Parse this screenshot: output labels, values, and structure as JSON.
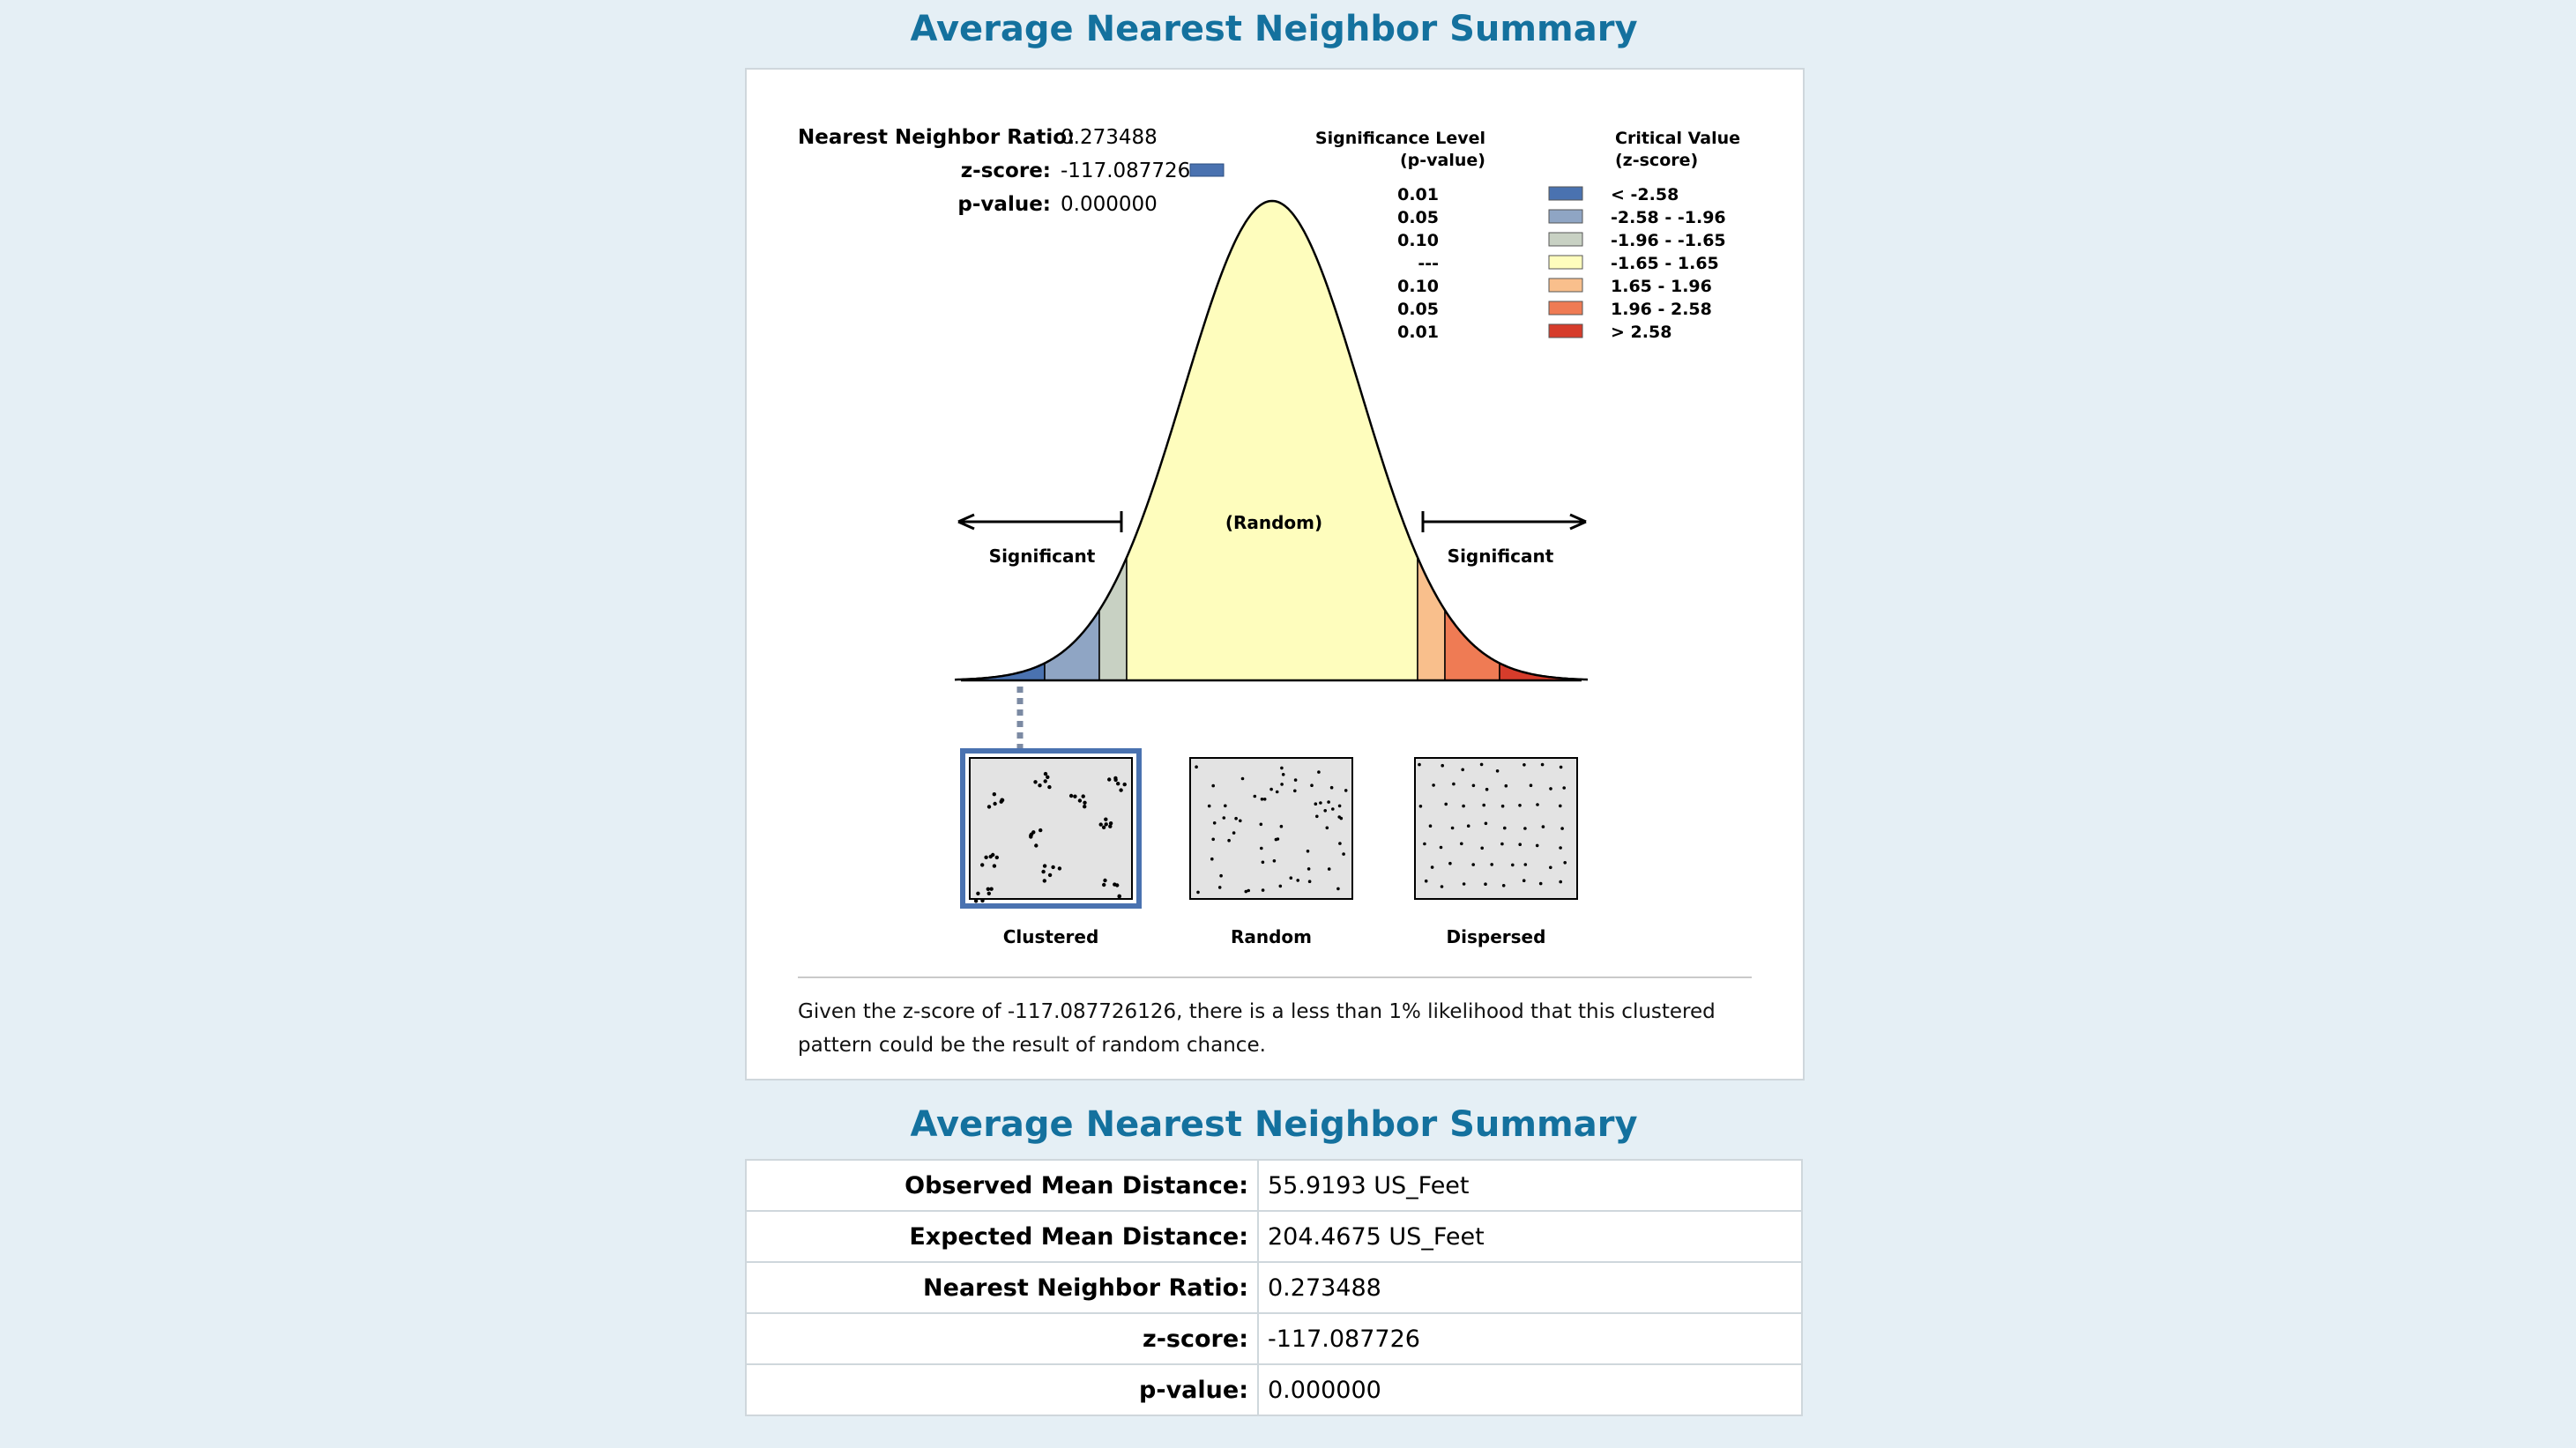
{
  "titles": {
    "chart_title": "Average Nearest Neighbor Summary",
    "table_title": "Average Nearest Neighbor Summary"
  },
  "stats": {
    "ratio_label": "Nearest Neighbor Ratio:",
    "ratio_value": "0.273488",
    "z_label": "z-score:",
    "z_value": "-117.087726",
    "p_label": "p-value:",
    "p_value": "0.000000"
  },
  "legend": {
    "sig_header_1": "Significance Level",
    "sig_header_2": "(p-value)",
    "crit_header_1": "Critical Value",
    "crit_header_2": "(z-score)",
    "rows": [
      {
        "p": "0.01",
        "z": "< -2.58",
        "color": "#4a72b0"
      },
      {
        "p": "0.05",
        "z": "-2.58 - -1.96",
        "color": "#8fa5c4"
      },
      {
        "p": "0.10",
        "z": "-1.96 - -1.65",
        "color": "#c8d1c3"
      },
      {
        "p": "---",
        "z": "-1.65 - 1.65",
        "color": "#fefdbd"
      },
      {
        "p": "0.10",
        "z": "1.65 - 1.96",
        "color": "#f9bf8c"
      },
      {
        "p": "0.05",
        "z": "1.96 - 2.58",
        "color": "#ef7b54"
      },
      {
        "p": "0.01",
        "z": "> 2.58",
        "color": "#d63c2b"
      }
    ]
  },
  "curve": {
    "random_label": "(Random)",
    "left_significant": "Significant",
    "right_significant": "Significant",
    "marker_color": "#4a72b0"
  },
  "patterns": {
    "clustered": "Clustered",
    "random": "Random",
    "dispersed": "Dispersed"
  },
  "explanation": "Given the z-score of -117.087726126, there is a less than 1% likelihood that this clustered pattern could be the result of random chance.",
  "table": [
    {
      "label": "Observed Mean Distance:",
      "value": "55.9193 US_Feet"
    },
    {
      "label": "Expected Mean Distance:",
      "value": "204.4675 US_Feet"
    },
    {
      "label": "Nearest Neighbor Ratio:",
      "value": "0.273488"
    },
    {
      "label": "z-score:",
      "value": "-117.087726"
    },
    {
      "label": "p-value:",
      "value": "0.000000"
    }
  ]
}
